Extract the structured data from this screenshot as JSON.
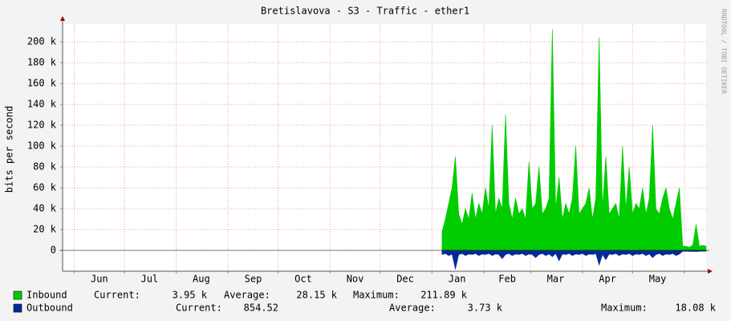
{
  "chart_data": {
    "type": "area",
    "title": "Bretislavova - S3 - Traffic - ether1",
    "y_label": "bits per second",
    "watermark": "RRDTOOL / TOBI OETIKER",
    "xlim": [
      -7,
      378
    ],
    "xticks": [
      {
        "value": 15,
        "label": "Jun"
      },
      {
        "value": 45,
        "label": "Jul"
      },
      {
        "value": 76,
        "label": "Aug"
      },
      {
        "value": 107,
        "label": "Sep"
      },
      {
        "value": 137,
        "label": "Oct"
      },
      {
        "value": 168,
        "label": "Nov"
      },
      {
        "value": 198,
        "label": "Dec"
      },
      {
        "value": 229,
        "label": "Jan"
      },
      {
        "value": 259,
        "label": "Feb"
      },
      {
        "value": 288,
        "label": "Mar"
      },
      {
        "value": 319,
        "label": "Apr"
      },
      {
        "value": 349,
        "label": "May"
      }
    ],
    "xgrid": [
      0,
      30,
      61,
      92,
      122,
      153,
      183,
      214,
      245,
      273,
      304,
      334,
      365
    ],
    "ylim": [
      -20000,
      217000
    ],
    "yticks": [
      0,
      {
        "value": 20000,
        "label": "20 k"
      },
      {
        "value": 40000,
        "label": "40 k"
      },
      {
        "value": 60000,
        "label": "60 k"
      },
      {
        "value": 80000,
        "label": "80 k"
      },
      {
        "value": 100000,
        "label": "100 k"
      },
      {
        "value": 120000,
        "label": "120 k"
      },
      {
        "value": 140000,
        "label": "140 k"
      },
      {
        "value": 160000,
        "label": "160 k"
      },
      {
        "value": 180000,
        "label": "180 k"
      },
      {
        "value": 200000,
        "label": "200 k"
      }
    ],
    "grid": true,
    "x": [
      220,
      222,
      224,
      226,
      228,
      230,
      232,
      234,
      236,
      238,
      240,
      242,
      244,
      246,
      248,
      250,
      252,
      254,
      256,
      258,
      260,
      262,
      264,
      266,
      268,
      270,
      272,
      274,
      276,
      278,
      280,
      282,
      284,
      286,
      288,
      290,
      292,
      294,
      296,
      298,
      300,
      302,
      304,
      306,
      308,
      310,
      312,
      314,
      316,
      318,
      320,
      322,
      324,
      326,
      328,
      330,
      332,
      334,
      336,
      338,
      340,
      342,
      344,
      346,
      348,
      350,
      352,
      354,
      356,
      358,
      360,
      362,
      364,
      366,
      368,
      370,
      372,
      374,
      376,
      378
    ],
    "series": [
      {
        "name": "Inbound",
        "color": "#00cc00",
        "direction": "up",
        "values": [
          18000,
          30000,
          45000,
          60000,
          90000,
          35000,
          25000,
          40000,
          30000,
          55000,
          30000,
          45000,
          35000,
          60000,
          40000,
          120000,
          35000,
          50000,
          40000,
          130000,
          45000,
          30000,
          50000,
          35000,
          40000,
          30000,
          85000,
          40000,
          45000,
          80000,
          35000,
          40000,
          50000,
          211890,
          40000,
          70000,
          30000,
          45000,
          35000,
          50000,
          100000,
          35000,
          40000,
          45000,
          60000,
          30000,
          50000,
          204000,
          40000,
          90000,
          35000,
          40000,
          45000,
          30000,
          100000,
          40000,
          80000,
          35000,
          45000,
          40000,
          60000,
          35000,
          50000,
          120000,
          40000,
          35000,
          50000,
          60000,
          40000,
          30000,
          45000,
          60000,
          4000,
          4000,
          3000,
          5000,
          25000,
          4000,
          5000,
          3950
        ],
        "stats": [
          {
            "label": "Current:",
            "value": {
              "value": 3950,
              "label": "3.95 k"
            }
          },
          {
            "label": "Average:",
            "value": {
              "value": 28150,
              "label": "28.15 k"
            }
          },
          {
            "label": "Maximum:",
            "value": {
              "value": 211890,
              "label": "211.89 k"
            }
          }
        ]
      },
      {
        "name": "Outbound",
        "color": "#002a97",
        "direction": "down",
        "values": [
          4000,
          3000,
          5000,
          3500,
          18080,
          4000,
          3000,
          5000,
          3500,
          4000,
          3000,
          5000,
          3500,
          4000,
          3000,
          5000,
          3500,
          4000,
          8000,
          4000,
          3000,
          5000,
          3500,
          4000,
          3000,
          5000,
          3500,
          4000,
          7000,
          4000,
          3000,
          5000,
          3500,
          6000,
          3000,
          10000,
          3500,
          4000,
          3000,
          5000,
          3500,
          4000,
          3000,
          5000,
          3500,
          4000,
          3000,
          14000,
          4000,
          9000,
          3500,
          4000,
          3000,
          5000,
          3500,
          4000,
          3000,
          5000,
          3500,
          4000,
          3000,
          5000,
          3500,
          7000,
          4000,
          3000,
          5000,
          3500,
          4000,
          3000,
          5000,
          3500,
          900,
          800,
          1000,
          900,
          1200,
          900,
          800,
          854.52
        ],
        "stats": [
          {
            "label": "Current:",
            "value": 854.52
          },
          {
            "label": "Average:",
            "value": {
              "value": 3730,
              "label": "3.73 k"
            }
          },
          {
            "label": "Maximum:",
            "value": {
              "value": 18080,
              "label": "18.08 k"
            }
          }
        ]
      }
    ]
  }
}
